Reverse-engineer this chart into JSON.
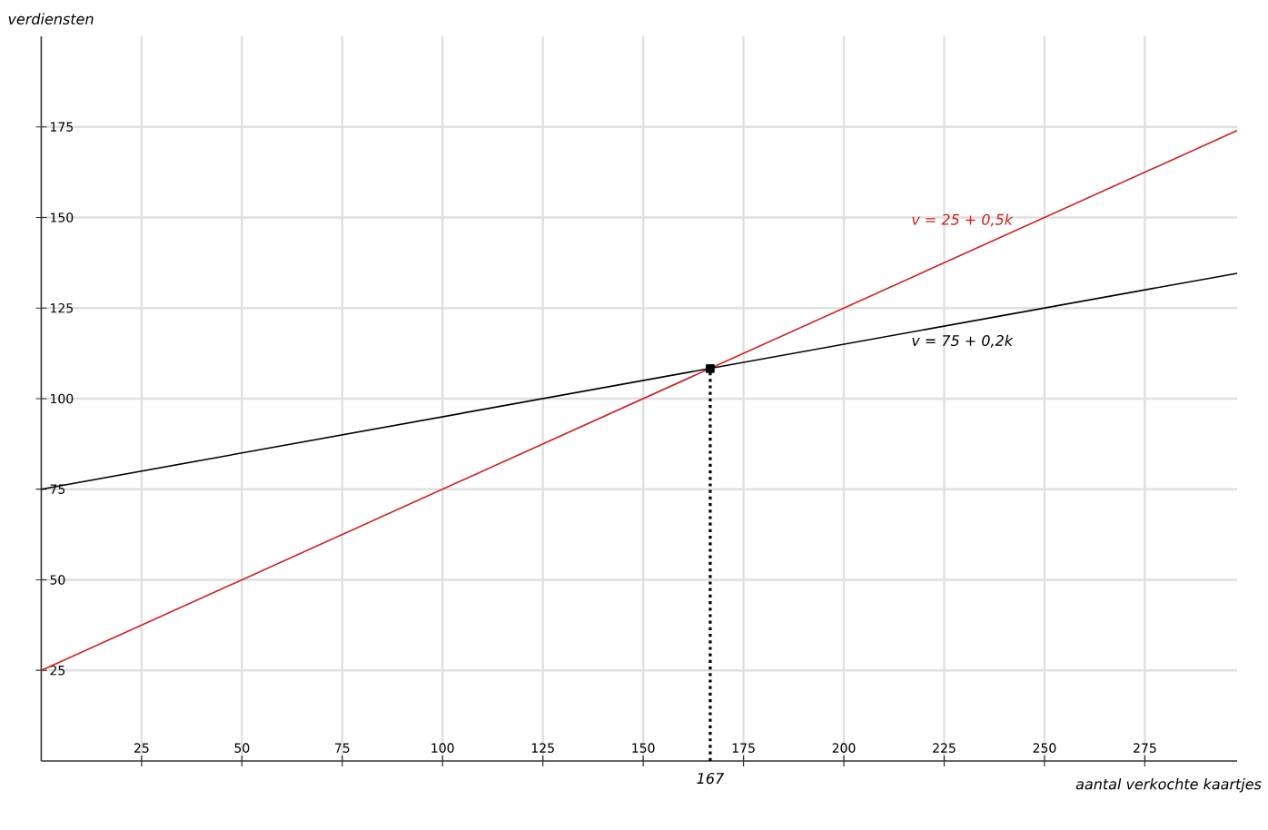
{
  "chart_data": {
    "type": "line",
    "xlabel": "aantal verkochte kaartjes",
    "ylabel": "verdiensten",
    "xlim": [
      0,
      298
    ],
    "ylim": [
      0,
      200
    ],
    "xticks": [
      25,
      50,
      75,
      100,
      125,
      150,
      175,
      200,
      225,
      250,
      275
    ],
    "yticks": [
      25,
      50,
      75,
      100,
      125,
      150,
      175
    ],
    "grid": true,
    "marker": "none",
    "line_style": "solid",
    "series": [
      {
        "name": "v = 25 + 0,5k",
        "color": "#cc2222",
        "x": [
          0,
          298
        ],
        "values": [
          25,
          174
        ]
      },
      {
        "name": "v = 75 + 0,2k",
        "color": "#000000",
        "x": [
          0,
          298
        ],
        "values": [
          75,
          134.6
        ]
      },
      {
        "type": "line",
        "color": "#000000",
        "line_style": "dotted",
        "x": [
          166.7,
          166.7
        ],
        "values": [
          0,
          108.3
        ]
      },
      {
        "type": "scatter",
        "color": "#000000",
        "marker": "square",
        "x": [
          166.7
        ],
        "values": [
          108.3
        ]
      }
    ],
    "annotations": [
      {
        "text": "167",
        "x": 166.7,
        "y": 0
      }
    ]
  }
}
